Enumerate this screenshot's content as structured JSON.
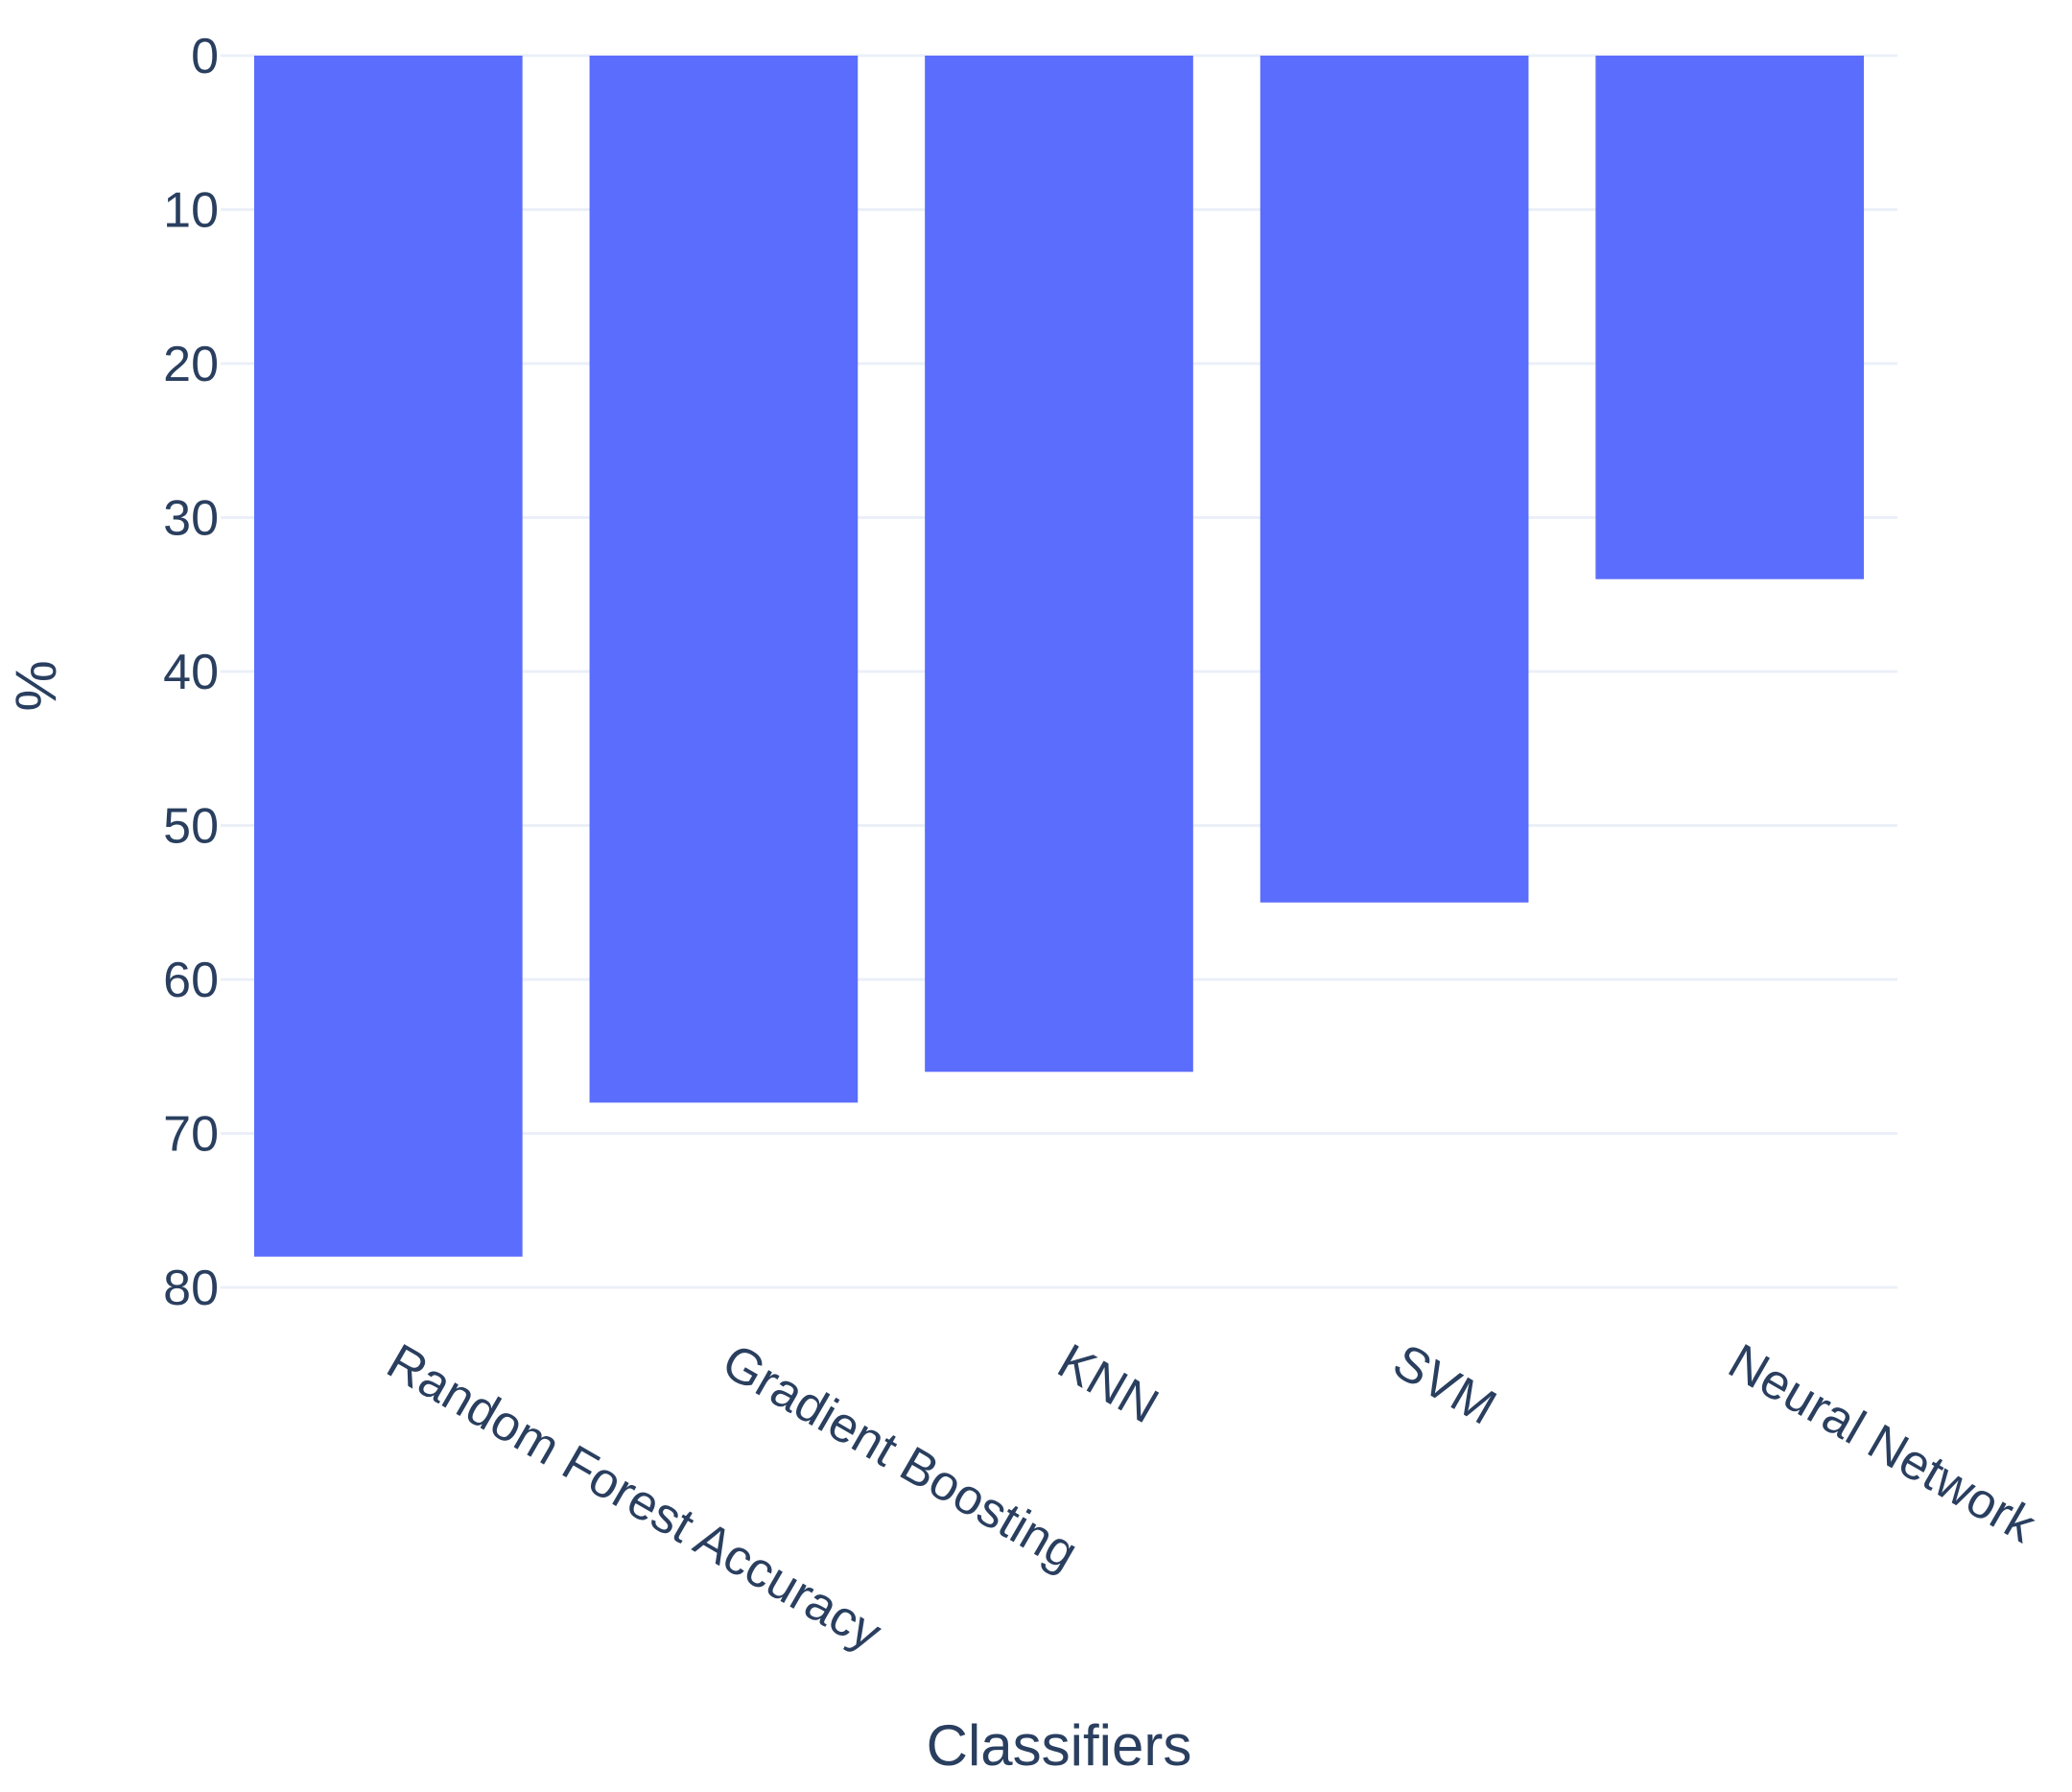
{
  "chart_data": {
    "type": "bar",
    "orientation": "vertical",
    "categories": [
      "Random Forest Accuracy",
      "Gradient Boosting",
      "KNN",
      "SVM",
      "Neural Network"
    ],
    "series": [
      {
        "values": [
          78,
          68,
          66,
          55,
          34
        ]
      }
    ],
    "title": "",
    "xlabel": "Classifiers",
    "ylabel": "%",
    "ylim": [
      0,
      80
    ],
    "y_reversed": true,
    "yticks": [
      0,
      10,
      20,
      30,
      40,
      50,
      60,
      70,
      80
    ],
    "grid": true,
    "bar_color": "#5b6dfc",
    "grid_color": "#ebf0f8",
    "text_color": "#2a3f5f"
  }
}
